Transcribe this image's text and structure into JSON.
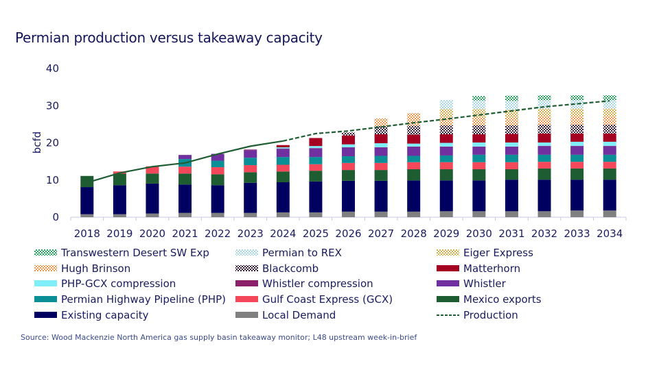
{
  "chart_data": {
    "type": "bar",
    "stacked": true,
    "title": "Permian production versus takeaway capacity",
    "xlabel": "",
    "ylabel": "bcfd",
    "ylim": [
      0,
      40
    ],
    "yticks": [
      "0",
      "10",
      "20",
      "30",
      "40"
    ],
    "grid": false,
    "legend_position": "bottom",
    "categories": [
      "2018",
      "2019",
      "2020",
      "2021",
      "2022",
      "2023",
      "2024",
      "2025",
      "2026",
      "2027",
      "2028",
      "2029",
      "2030",
      "2031",
      "2032",
      "2033",
      "2034"
    ],
    "series": [
      {
        "name": "Local Demand",
        "color": "#808080",
        "pattern": "solid",
        "values": [
          0.8,
          0.8,
          1.0,
          1.15,
          1.15,
          1.15,
          1.3,
          1.3,
          1.5,
          1.5,
          1.5,
          1.6,
          1.6,
          1.6,
          1.6,
          1.8,
          1.8
        ]
      },
      {
        "name": "Existing capacity",
        "color": "#000060",
        "pattern": "solid",
        "values": [
          7.3,
          7.8,
          8.05,
          7.65,
          7.45,
          8.1,
          8.1,
          8.3,
          8.3,
          8.3,
          8.4,
          8.3,
          8.3,
          8.5,
          8.5,
          8.3,
          8.3
        ]
      },
      {
        "name": "Mexico exports",
        "color": "#1e5c32",
        "pattern": "solid",
        "values": [
          3.0,
          3.1,
          2.7,
          2.95,
          2.95,
          2.85,
          2.9,
          2.9,
          2.9,
          2.9,
          3.0,
          3.0,
          3.0,
          2.8,
          3.0,
          3.0,
          3.0
        ]
      },
      {
        "name": "Gulf Coast Express (GCX)",
        "color": "#f4485a",
        "pattern": "solid",
        "values": [
          0,
          0.6,
          1.95,
          1.85,
          1.9,
          1.9,
          1.8,
          1.75,
          1.9,
          1.9,
          1.9,
          1.9,
          1.9,
          1.9,
          1.8,
          1.8,
          1.8
        ]
      },
      {
        "name": "Permian Highway Pipeline (PHP)",
        "color": "#0a8f96",
        "pattern": "solid",
        "values": [
          0,
          0,
          0,
          2.05,
          1.75,
          2.0,
          2.1,
          1.95,
          1.8,
          1.9,
          1.7,
          1.8,
          2.0,
          2.0,
          1.9,
          1.9,
          1.9
        ]
      },
      {
        "name": "Whistler",
        "color": "#7030a0",
        "pattern": "solid",
        "values": [
          0,
          0,
          0,
          1.1,
          1.85,
          2.0,
          2.2,
          2.3,
          2.3,
          2.2,
          2.4,
          2.3,
          2.1,
          2.1,
          2.3,
          2.3,
          2.3
        ]
      },
      {
        "name": "Whistler compression",
        "color": "#8b1f6a",
        "pattern": "solid",
        "values": [
          0,
          0,
          0,
          0,
          0,
          0.2,
          0.1,
          0.1,
          0.1,
          0.1,
          0.1,
          0.1,
          0.1,
          0.1,
          0.1,
          0.1,
          0.1
        ]
      },
      {
        "name": "PHP-GCX compression",
        "color": "#7feef8",
        "pattern": "solid",
        "values": [
          0,
          0,
          0,
          0,
          0,
          0,
          0.3,
          0.55,
          0.8,
          1.1,
          0.8,
          1.0,
          1.1,
          1.1,
          0.9,
          1.1,
          1.1
        ]
      },
      {
        "name": "Matterhorn",
        "color": "#a50021",
        "pattern": "solid",
        "values": [
          0,
          0,
          0,
          0,
          0,
          0,
          0.6,
          2.15,
          2.4,
          2.4,
          2.4,
          2.3,
          2.2,
          2.3,
          2.4,
          2.2,
          2.2
        ]
      },
      {
        "name": "Blackcomb",
        "color": "#3a1a3a",
        "pattern": "checker",
        "values": [
          0,
          0,
          0,
          0,
          0,
          0,
          0,
          0,
          0.8,
          2.2,
          2.4,
          2.4,
          2.4,
          2.3,
          2.4,
          2.4,
          2.4
        ]
      },
      {
        "name": "Hugh Brinson",
        "color": "#e89a50",
        "pattern": "checker",
        "values": [
          0,
          0,
          0,
          0,
          0,
          0,
          0,
          0,
          0,
          2.1,
          3.4,
          2.2,
          2.2,
          2.1,
          2.2,
          2.2,
          2.2
        ]
      },
      {
        "name": "Eiger Express",
        "color": "#d2b050",
        "pattern": "checker",
        "values": [
          0,
          0,
          0,
          0,
          0,
          0,
          0,
          0,
          0,
          0,
          0,
          2.2,
          2.2,
          2.1,
          2.1,
          2.1,
          2.1
        ]
      },
      {
        "name": "Permian to REX",
        "color": "#a8d8e6",
        "pattern": "checker",
        "values": [
          0,
          0,
          0,
          0,
          0,
          0,
          0,
          0,
          0,
          0,
          0,
          2.4,
          2.3,
          2.4,
          2.3,
          2.3,
          2.3
        ]
      },
      {
        "name": "Transwestern Desert SW Exp",
        "color": "#28a060",
        "pattern": "checker",
        "values": [
          0,
          0,
          0,
          0,
          0,
          0,
          0,
          0,
          0,
          0,
          0,
          0,
          1.2,
          1.4,
          1.3,
          1.3,
          1.3
        ]
      }
    ],
    "line": {
      "name": "Production",
      "color": "#1e5c32",
      "values": [
        9.3,
        11.9,
        13.6,
        14.6,
        17.0,
        19.1,
        20.5,
        22.5,
        23.2,
        24.3,
        25.4,
        26.4,
        27.5,
        28.6,
        29.7,
        30.5,
        31.3
      ],
      "dashed_from": "2024"
    },
    "legend_order": [
      "Transwestern Desert SW Exp",
      "Permian to REX",
      "Eiger Express",
      "Hugh Brinson",
      "Blackcomb",
      "Matterhorn",
      "PHP-GCX compression",
      "Whistler compression",
      "Whistler",
      "Permian Highway Pipeline (PHP)",
      "Gulf Coast Express (GCX)",
      "Mexico exports",
      "Existing capacity",
      "Local Demand",
      "Production"
    ]
  },
  "source": "Source: Wood Mackenzie North America gas supply basin takeaway monitor; L48 upstream week-in-brief"
}
